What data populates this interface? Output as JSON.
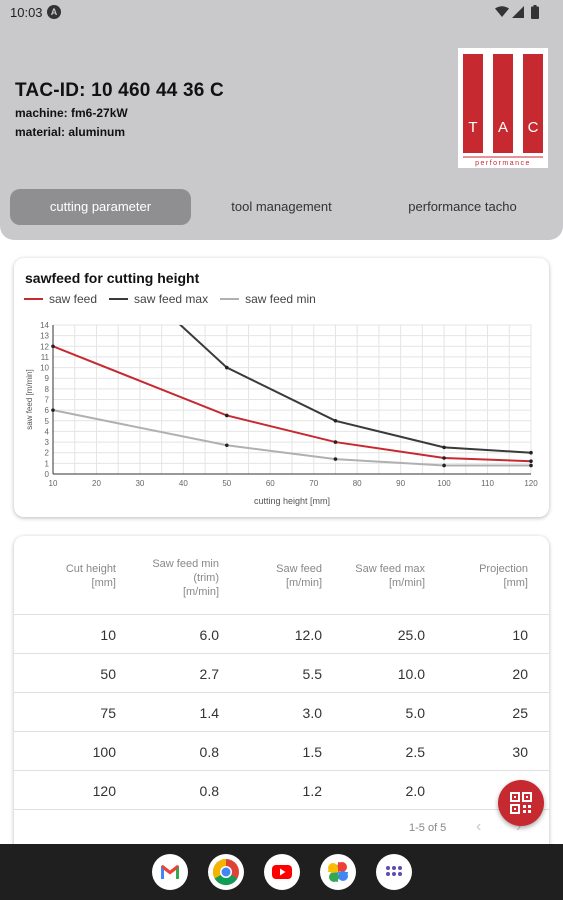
{
  "status_bar": {
    "time": "10:03"
  },
  "header": {
    "tac_id": "TAC-ID: 10 460 44 36 C",
    "machine": "machine: fm6-27kW",
    "material": "material: aluminum",
    "logo": {
      "letters": [
        "T",
        "A",
        "C"
      ],
      "caption": "performance"
    }
  },
  "tabs": [
    {
      "label": "cutting parameter",
      "active": true
    },
    {
      "label": "tool management",
      "active": false
    },
    {
      "label": "performance tacho",
      "active": false
    }
  ],
  "colors": {
    "accent_red": "#c62a30",
    "saw_feed": "#c62a30",
    "saw_feed_max": "#3a3a3a",
    "saw_feed_min": "#b0b0b0"
  },
  "chart_data": {
    "type": "line",
    "title": "sawfeed for cutting height",
    "xlabel": "cutting height [mm]",
    "ylabel": "saw feed [m/min]",
    "xlim": [
      10,
      120
    ],
    "ylim": [
      0,
      14
    ],
    "x_ticks": [
      10,
      20,
      30,
      40,
      50,
      60,
      70,
      80,
      90,
      100,
      110,
      120
    ],
    "y_ticks": [
      0,
      1,
      2,
      3,
      4,
      5,
      6,
      7,
      8,
      9,
      10,
      11,
      12,
      13,
      14
    ],
    "grid": true,
    "legend": "top-left",
    "x": [
      10,
      50,
      75,
      100,
      120
    ],
    "series": [
      {
        "name": "saw feed",
        "values": [
          12.0,
          5.5,
          3.0,
          1.5,
          1.2
        ],
        "color": "#c62a30"
      },
      {
        "name": "saw feed max",
        "values": [
          25.0,
          10.0,
          5.0,
          2.5,
          2.0
        ],
        "color": "#3a3a3a"
      },
      {
        "name": "saw feed min",
        "values": [
          6.0,
          2.7,
          1.4,
          0.8,
          0.8
        ],
        "color": "#b0b0b0"
      }
    ]
  },
  "table": {
    "headers": [
      [
        "Cut height",
        "[mm]"
      ],
      [
        "Saw feed min",
        "(trim)",
        "[m/min]"
      ],
      [
        "Saw feed",
        "[m/min]"
      ],
      [
        "Saw feed max",
        "[m/min]"
      ],
      [
        "Projection",
        "[mm]"
      ]
    ],
    "rows": [
      [
        "10",
        "6.0",
        "12.0",
        "25.0",
        "10"
      ],
      [
        "50",
        "2.7",
        "5.5",
        "10.0",
        "20"
      ],
      [
        "75",
        "1.4",
        "3.0",
        "5.0",
        "25"
      ],
      [
        "100",
        "0.8",
        "1.5",
        "2.5",
        "30"
      ],
      [
        "120",
        "0.8",
        "1.2",
        "2.0",
        "0"
      ]
    ],
    "pagination": {
      "label": "1-5 of 5",
      "prev": "‹",
      "next": "›"
    }
  },
  "fab": {
    "icon": "qr-code-icon"
  },
  "dock": [
    "gmail-icon",
    "chrome-icon",
    "youtube-icon",
    "photos-icon",
    "app-drawer-icon"
  ]
}
